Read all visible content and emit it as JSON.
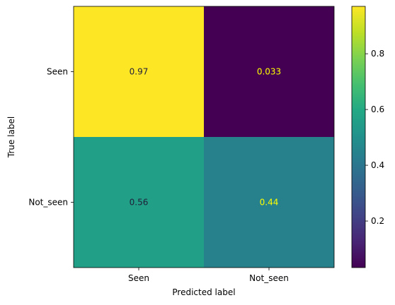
{
  "chart_data": {
    "type": "heatmap",
    "title": "",
    "xlabel": "Predicted label",
    "ylabel": "True label",
    "x_categories": [
      "Seen",
      "Not_seen"
    ],
    "y_categories": [
      "Seen",
      "Not_seen"
    ],
    "values": [
      [
        0.97,
        0.033
      ],
      [
        0.56,
        0.44
      ]
    ],
    "value_labels": [
      [
        "0.97",
        "0.033"
      ],
      [
        "0.56",
        "0.44"
      ]
    ],
    "colormap": "viridis",
    "colorbar": {
      "range": [
        0.033,
        0.97
      ],
      "ticks": [
        0.2,
        0.4,
        0.6,
        0.8
      ],
      "tick_labels": [
        "0.2",
        "0.4",
        "0.6",
        "0.8"
      ]
    },
    "text_colors": {
      "dark_bg": "#ffff00",
      "light_bg": "#1f1f3a"
    }
  }
}
